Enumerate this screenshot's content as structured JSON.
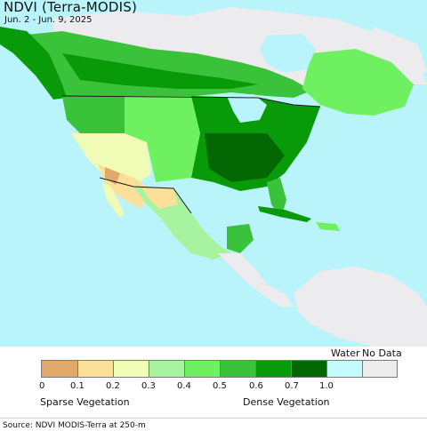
{
  "header": {
    "title": "NDVI (Terra-MODIS)",
    "date_range": "Jun. 2 - Jun. 9, 2025"
  },
  "legend": {
    "items": [
      {
        "label": "0",
        "color": "#e0a96b"
      },
      {
        "label": "0.1",
        "color": "#fce09a"
      },
      {
        "label": "0.2",
        "color": "#f0fbb6"
      },
      {
        "label": "0.3",
        "color": "#a8f3a0"
      },
      {
        "label": "0.4",
        "color": "#6ef061"
      },
      {
        "label": "0.5",
        "color": "#3bc23b"
      },
      {
        "label": "0.6",
        "color": "#089a08"
      },
      {
        "label": "0.7",
        "color": "#036803"
      },
      {
        "label": "1.0",
        "color": "#c4fbfd"
      },
      {
        "label": "",
        "color": "#ecebee"
      }
    ],
    "water_label": "Water",
    "nodata_label": "No Data",
    "sparse_label": "Sparse Vegetation",
    "dense_label": "Dense Vegetation"
  },
  "footer": {
    "source": "Source: NDVI MODIS-Terra at 250-m"
  },
  "colors": {
    "ocean": "#b9f4fb",
    "nodata": "#ecebee",
    "border": "#1a1a1a"
  }
}
